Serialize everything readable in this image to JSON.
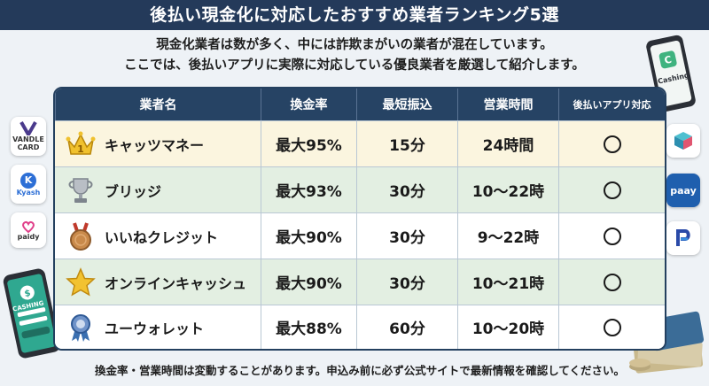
{
  "title": "後払い現金化に対応したおすすめ業者ランキング5選",
  "intro": [
    "現金化業者は数が多く、中には詐欺まがいの業者が混在しています。",
    "ここでは、後払いアプリに実際に対応している優良業者を厳選して紹介します。"
  ],
  "table": {
    "headers": {
      "name": "業者名",
      "rate": "換金率",
      "min_transfer": "最短振込",
      "hours": "営業時間",
      "app_support": "後払いアプリ対応"
    },
    "rows": [
      {
        "medal": "gold-crown-1",
        "name": "キャッツマネー",
        "rate": "最大95%",
        "min_transfer": "15分",
        "hours": "24時間",
        "app_support": "◯"
      },
      {
        "medal": "silver-trophy",
        "name": "ブリッジ",
        "rate": "最大93%",
        "min_transfer": "30分",
        "hours": "10〜22時",
        "app_support": "◯"
      },
      {
        "medal": "bronze-medal",
        "name": "いいねクレジット",
        "rate": "最大90%",
        "min_transfer": "30分",
        "hours": "9〜22時",
        "app_support": "◯"
      },
      {
        "medal": "gold-star",
        "name": "オンラインキャッシュ",
        "rate": "最大90%",
        "min_transfer": "30分",
        "hours": "10〜21時",
        "app_support": "◯"
      },
      {
        "medal": "blue-ribbon",
        "name": "ユーウォレット",
        "rate": "最大88%",
        "min_transfer": "60分",
        "hours": "10〜20時",
        "app_support": "◯"
      }
    ]
  },
  "note": "換金率・営業時間は変動することがあります。申込み前に必ず公式サイトで最新情報を確認してください。",
  "logos": {
    "vandle": {
      "line1": "VANDLE",
      "line2": "CARD"
    },
    "kyash": "Kyash",
    "paidy": "paidy",
    "paay": "paay",
    "cashing_phone_left": "CASHING",
    "cashing_phone_right": "Cashing"
  },
  "colors": {
    "header_bg": "#264364",
    "title_bg": "#243a5a",
    "row_gold": "#fbf5df",
    "row_green": "#e3efe2"
  }
}
